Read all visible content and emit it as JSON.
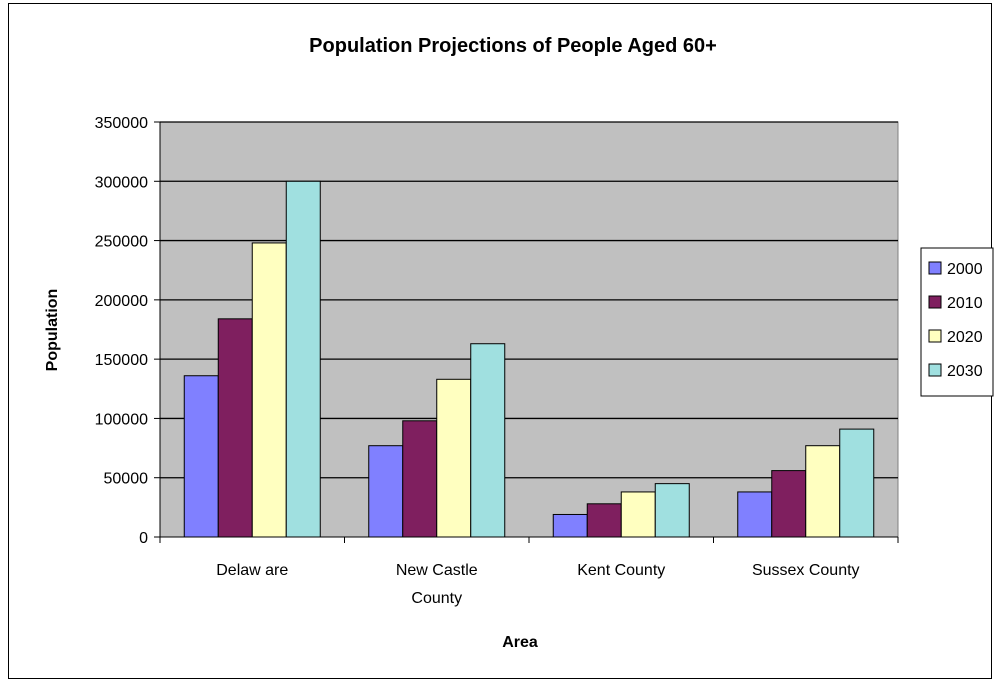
{
  "chart_data": {
    "type": "bar",
    "title": "Population Projections of People Aged 60+",
    "xlabel": "Area",
    "ylabel": "Population",
    "categories": [
      "Delaware",
      "New Castle County",
      "Kent County",
      "Sussex County"
    ],
    "category_tick_lines": [
      [
        "Delaw are"
      ],
      [
        "New  Castle",
        "County"
      ],
      [
        "Kent County"
      ],
      [
        "Sussex County"
      ]
    ],
    "ylim": [
      0,
      350000
    ],
    "yticks": [
      0,
      50000,
      100000,
      150000,
      200000,
      250000,
      300000,
      350000
    ],
    "ytick_labels": [
      "0",
      "50000",
      "100000",
      "150000",
      "200000",
      "250000",
      "300000",
      "350000"
    ],
    "grid": true,
    "legend_position": "right",
    "series": [
      {
        "name": "2000",
        "color": "#8080ff",
        "values": [
          136000,
          77000,
          19000,
          38000
        ]
      },
      {
        "name": "2010",
        "color": "#7f1f5f",
        "values": [
          184000,
          98000,
          28000,
          56000
        ]
      },
      {
        "name": "2020",
        "color": "#ffffc0",
        "values": [
          248000,
          133000,
          38000,
          77000
        ]
      },
      {
        "name": "2030",
        "color": "#a0e0e0",
        "values": [
          300000,
          163000,
          45000,
          91000
        ]
      }
    ],
    "plot_background": "#c0c0c0"
  }
}
